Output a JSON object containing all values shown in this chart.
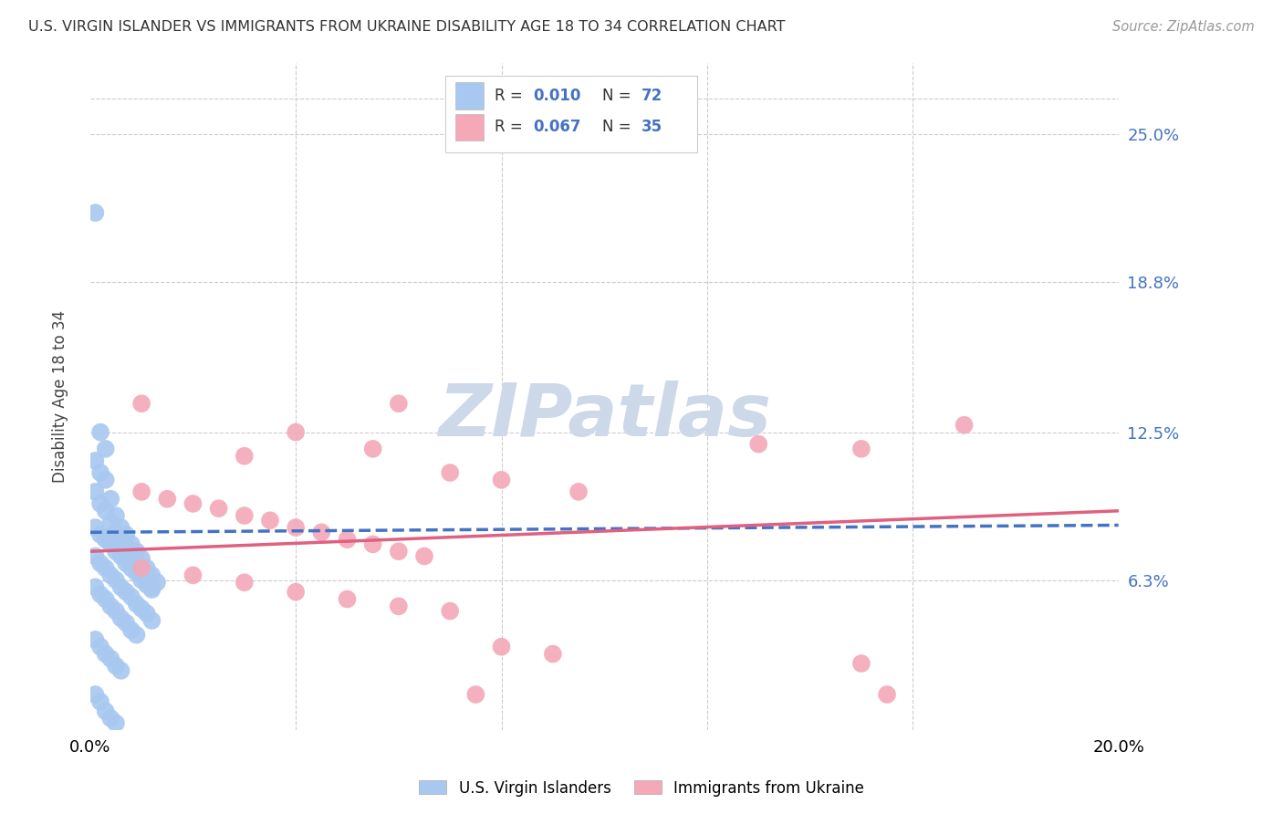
{
  "title": "U.S. VIRGIN ISLANDER VS IMMIGRANTS FROM UKRAINE DISABILITY AGE 18 TO 34 CORRELATION CHART",
  "source": "Source: ZipAtlas.com",
  "ylabel": "Disability Age 18 to 34",
  "xlim": [
    0.0,
    0.2
  ],
  "ylim": [
    0.0,
    0.28
  ],
  "ytick_right_labels": [
    "25.0%",
    "18.8%",
    "12.5%",
    "6.3%"
  ],
  "ytick_right_values": [
    0.25,
    0.188,
    0.125,
    0.063
  ],
  "blue_R": "0.010",
  "blue_N": "72",
  "pink_R": "0.067",
  "pink_N": "35",
  "blue_color": "#a8c8f0",
  "pink_color": "#f4a8b8",
  "blue_line_color": "#4472c4",
  "pink_line_color": "#e06080",
  "background_color": "#ffffff",
  "grid_color": "#cccccc",
  "watermark": "ZIPatlas",
  "watermark_color": "#cdd8e8",
  "legend_label_blue": "U.S. Virgin Islanders",
  "legend_label_pink": "Immigrants from Ukraine",
  "blue_points": [
    [
      0.001,
      0.217
    ],
    [
      0.002,
      0.125
    ],
    [
      0.003,
      0.118
    ],
    [
      0.001,
      0.113
    ],
    [
      0.002,
      0.108
    ],
    [
      0.003,
      0.105
    ],
    [
      0.001,
      0.1
    ],
    [
      0.004,
      0.097
    ],
    [
      0.002,
      0.095
    ],
    [
      0.003,
      0.092
    ],
    [
      0.005,
      0.09
    ],
    [
      0.004,
      0.087
    ],
    [
      0.006,
      0.085
    ],
    [
      0.005,
      0.083
    ],
    [
      0.007,
      0.082
    ],
    [
      0.006,
      0.08
    ],
    [
      0.008,
      0.078
    ],
    [
      0.007,
      0.077
    ],
    [
      0.009,
      0.075
    ],
    [
      0.008,
      0.073
    ],
    [
      0.01,
      0.072
    ],
    [
      0.009,
      0.07
    ],
    [
      0.011,
      0.068
    ],
    [
      0.01,
      0.067
    ],
    [
      0.012,
      0.065
    ],
    [
      0.011,
      0.064
    ],
    [
      0.013,
      0.062
    ],
    [
      0.012,
      0.06
    ],
    [
      0.001,
      0.085
    ],
    [
      0.002,
      0.082
    ],
    [
      0.003,
      0.08
    ],
    [
      0.004,
      0.078
    ],
    [
      0.005,
      0.075
    ],
    [
      0.006,
      0.073
    ],
    [
      0.007,
      0.07
    ],
    [
      0.008,
      0.068
    ],
    [
      0.009,
      0.066
    ],
    [
      0.01,
      0.063
    ],
    [
      0.011,
      0.061
    ],
    [
      0.012,
      0.059
    ],
    [
      0.001,
      0.073
    ],
    [
      0.002,
      0.07
    ],
    [
      0.003,
      0.068
    ],
    [
      0.004,
      0.065
    ],
    [
      0.005,
      0.063
    ],
    [
      0.006,
      0.06
    ],
    [
      0.007,
      0.058
    ],
    [
      0.008,
      0.056
    ],
    [
      0.009,
      0.053
    ],
    [
      0.01,
      0.051
    ],
    [
      0.011,
      0.049
    ],
    [
      0.012,
      0.046
    ],
    [
      0.001,
      0.06
    ],
    [
      0.002,
      0.057
    ],
    [
      0.003,
      0.055
    ],
    [
      0.004,
      0.052
    ],
    [
      0.005,
      0.05
    ],
    [
      0.006,
      0.047
    ],
    [
      0.007,
      0.045
    ],
    [
      0.008,
      0.042
    ],
    [
      0.009,
      0.04
    ],
    [
      0.001,
      0.038
    ],
    [
      0.002,
      0.035
    ],
    [
      0.003,
      0.032
    ],
    [
      0.004,
      0.03
    ],
    [
      0.005,
      0.027
    ],
    [
      0.006,
      0.025
    ],
    [
      0.001,
      0.015
    ],
    [
      0.002,
      0.012
    ],
    [
      0.003,
      0.008
    ],
    [
      0.004,
      0.005
    ],
    [
      0.005,
      0.003
    ]
  ],
  "pink_points": [
    [
      0.01,
      0.137
    ],
    [
      0.03,
      0.115
    ],
    [
      0.04,
      0.125
    ],
    [
      0.055,
      0.118
    ],
    [
      0.06,
      0.137
    ],
    [
      0.07,
      0.108
    ],
    [
      0.08,
      0.105
    ],
    [
      0.095,
      0.1
    ],
    [
      0.13,
      0.12
    ],
    [
      0.15,
      0.118
    ],
    [
      0.17,
      0.128
    ],
    [
      0.01,
      0.1
    ],
    [
      0.015,
      0.097
    ],
    [
      0.02,
      0.095
    ],
    [
      0.025,
      0.093
    ],
    [
      0.03,
      0.09
    ],
    [
      0.035,
      0.088
    ],
    [
      0.04,
      0.085
    ],
    [
      0.045,
      0.083
    ],
    [
      0.05,
      0.08
    ],
    [
      0.055,
      0.078
    ],
    [
      0.06,
      0.075
    ],
    [
      0.065,
      0.073
    ],
    [
      0.01,
      0.068
    ],
    [
      0.02,
      0.065
    ],
    [
      0.03,
      0.062
    ],
    [
      0.04,
      0.058
    ],
    [
      0.05,
      0.055
    ],
    [
      0.06,
      0.052
    ],
    [
      0.07,
      0.05
    ],
    [
      0.08,
      0.035
    ],
    [
      0.09,
      0.032
    ],
    [
      0.15,
      0.028
    ],
    [
      0.075,
      0.015
    ],
    [
      0.155,
      0.015
    ]
  ],
  "blue_line_x": [
    0.0,
    0.2
  ],
  "blue_line_y": [
    0.083,
    0.086
  ],
  "pink_line_x": [
    0.0,
    0.2
  ],
  "pink_line_y": [
    0.075,
    0.092
  ]
}
